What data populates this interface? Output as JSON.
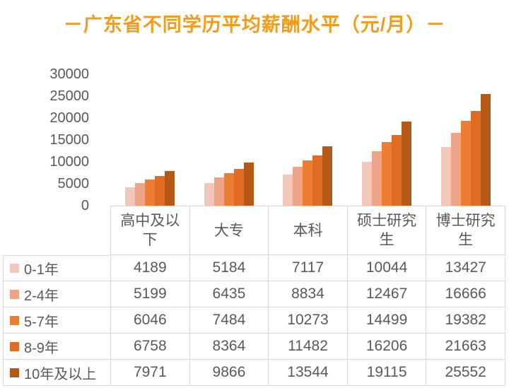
{
  "title": "－广东省不同学历平均薪酬水平（元/月）－",
  "colors": {
    "title": "#f39c1b",
    "text": "#595959",
    "grid_border": "#d9d9d9",
    "background": "#ffffff"
  },
  "chart_data": {
    "type": "bar",
    "title": "－广东省不同学历平均薪酬水平（元/月）－",
    "categories": [
      "高中及以下",
      "大专",
      "本科",
      "硕士研究生",
      "博士研究生"
    ],
    "series": [
      {
        "name": "0-1年",
        "color": "#f2c6ba",
        "values": [
          4189,
          5184,
          7117,
          10044,
          13427
        ]
      },
      {
        "name": "2-4年",
        "color": "#efa489",
        "values": [
          5199,
          6435,
          8834,
          12467,
          16666
        ]
      },
      {
        "name": "5-7年",
        "color": "#ed7d31",
        "values": [
          6046,
          7484,
          10273,
          14499,
          19382
        ]
      },
      {
        "name": "8-9年",
        "color": "#e06b22",
        "values": [
          6758,
          8364,
          11482,
          16206,
          21663
        ]
      },
      {
        "name": "10年及以上",
        "color": "#b55a16",
        "values": [
          7971,
          9866,
          13544,
          19115,
          25552
        ]
      }
    ],
    "ylim": [
      0,
      30000
    ],
    "y_ticks": [
      30000,
      25000,
      20000,
      15000,
      10000,
      5000,
      0
    ],
    "xlabel": "",
    "ylabel": "",
    "grid": false,
    "legend_position": "table-rows-left",
    "data_table_shown": true
  }
}
